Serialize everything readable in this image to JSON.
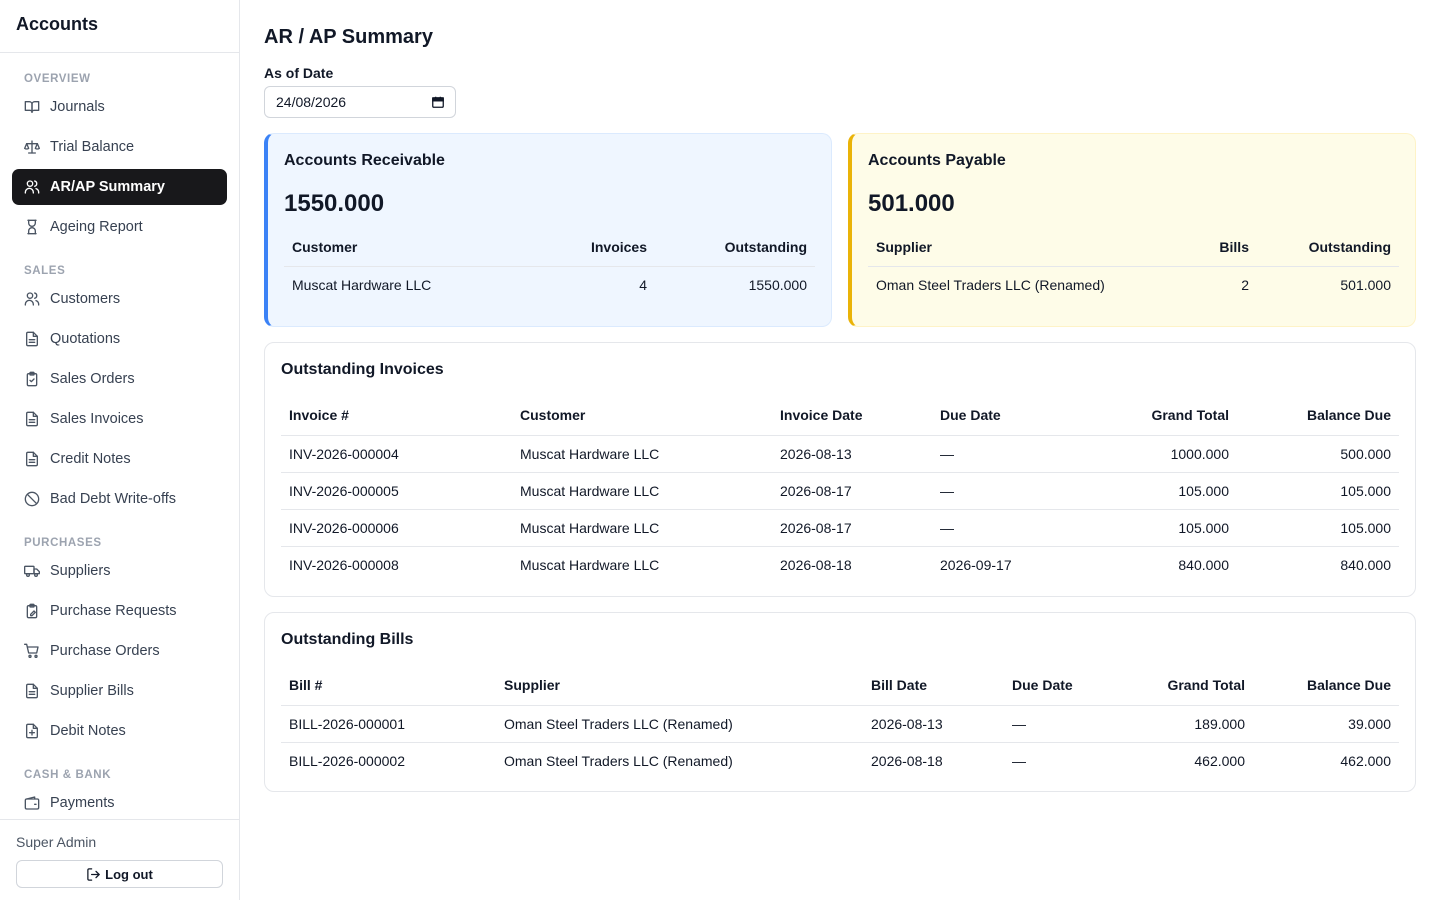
{
  "app": {
    "title": "Accounts"
  },
  "sidebar": {
    "sections": [
      {
        "label": "OVERVIEW",
        "items": [
          {
            "label": "Journals",
            "icon": "book-open-icon"
          },
          {
            "label": "Trial Balance",
            "icon": "scale-icon"
          },
          {
            "label": "AR/AP Summary",
            "icon": "users-icon",
            "active": true
          },
          {
            "label": "Ageing Report",
            "icon": "hourglass-icon"
          }
        ]
      },
      {
        "label": "SALES",
        "items": [
          {
            "label": "Customers",
            "icon": "users-icon"
          },
          {
            "label": "Quotations",
            "icon": "file-text-icon"
          },
          {
            "label": "Sales Orders",
            "icon": "clipboard-check-icon"
          },
          {
            "label": "Sales Invoices",
            "icon": "file-text-icon"
          },
          {
            "label": "Credit Notes",
            "icon": "file-text-icon"
          },
          {
            "label": "Bad Debt Write-offs",
            "icon": "ban-icon"
          }
        ]
      },
      {
        "label": "PURCHASES",
        "items": [
          {
            "label": "Suppliers",
            "icon": "truck-icon"
          },
          {
            "label": "Purchase Requests",
            "icon": "clipboard-edit-icon"
          },
          {
            "label": "Purchase Orders",
            "icon": "shopping-cart-icon"
          },
          {
            "label": "Supplier Bills",
            "icon": "file-text-icon"
          },
          {
            "label": "Debit Notes",
            "icon": "file-plus-icon"
          }
        ]
      },
      {
        "label": "CASH & BANK",
        "items": [
          {
            "label": "Payments",
            "icon": "wallet-icon"
          }
        ]
      }
    ],
    "user": "Super Admin",
    "logout_label": "Log out"
  },
  "main": {
    "title": "AR / AP Summary",
    "as_of_label": "As of Date",
    "as_of_value": "24/08/2026",
    "receivable": {
      "title": "Accounts Receivable",
      "total": "1550.000",
      "headers": [
        "Customer",
        "Invoices",
        "Outstanding"
      ],
      "rows": [
        [
          "Muscat Hardware LLC",
          "4",
          "1550.000"
        ]
      ]
    },
    "payable": {
      "title": "Accounts Payable",
      "total": "501.000",
      "headers": [
        "Supplier",
        "Bills",
        "Outstanding"
      ],
      "rows": [
        [
          "Oman Steel Traders LLC (Renamed)",
          "2",
          "501.000"
        ]
      ]
    },
    "invoices": {
      "title": "Outstanding Invoices",
      "headers": [
        "Invoice #",
        "Customer",
        "Invoice Date",
        "Due Date",
        "Grand Total",
        "Balance Due"
      ],
      "rows": [
        [
          "INV-2026-000004",
          "Muscat Hardware LLC",
          "2026-08-13",
          "—",
          "1000.000",
          "500.000"
        ],
        [
          "INV-2026-000005",
          "Muscat Hardware LLC",
          "2026-08-17",
          "—",
          "105.000",
          "105.000"
        ],
        [
          "INV-2026-000006",
          "Muscat Hardware LLC",
          "2026-08-17",
          "—",
          "105.000",
          "105.000"
        ],
        [
          "INV-2026-000008",
          "Muscat Hardware LLC",
          "2026-08-18",
          "2026-09-17",
          "840.000",
          "840.000"
        ]
      ]
    },
    "bills": {
      "title": "Outstanding Bills",
      "headers": [
        "Bill #",
        "Supplier",
        "Bill Date",
        "Due Date",
        "Grand Total",
        "Balance Due"
      ],
      "rows": [
        [
          "BILL-2026-000001",
          "Oman Steel Traders LLC (Renamed)",
          "2026-08-13",
          "—",
          "189.000",
          "39.000"
        ],
        [
          "BILL-2026-000002",
          "Oman Steel Traders LLC (Renamed)",
          "2026-08-18",
          "—",
          "462.000",
          "462.000"
        ]
      ]
    }
  }
}
